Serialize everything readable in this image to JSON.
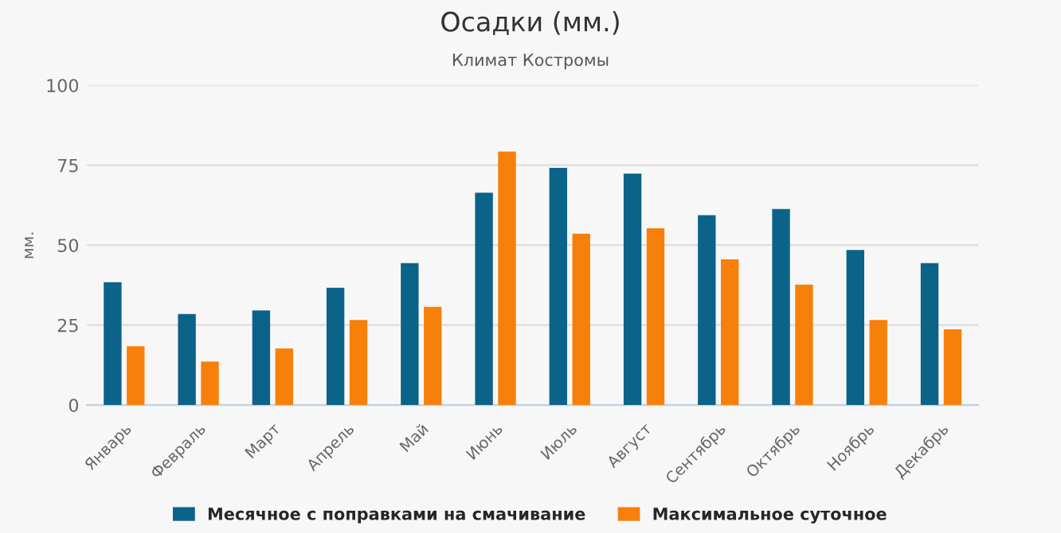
{
  "chart_data": {
    "type": "bar",
    "title": "Осадки (мм.)",
    "subtitle": "Климат Костромы",
    "ylabel": "мм.",
    "categories": [
      "Январь",
      "Февраль",
      "Март",
      "Апрель",
      "Май",
      "Июнь",
      "Июль",
      "Август",
      "Сентябрь",
      "Октябрь",
      "Ноябрь",
      "Декабрь"
    ],
    "series": [
      {
        "name": "Месячное с поправками на смачивание",
        "color": "#0b6389",
        "values": [
          38.4,
          28.5,
          29.6,
          36.7,
          44.4,
          66.4,
          74.2,
          72.4,
          59.4,
          61.3,
          48.5,
          44.4
        ]
      },
      {
        "name": "Максимальное суточное",
        "color": "#f7800b",
        "values": [
          18.4,
          13.6,
          17.7,
          26.6,
          30.7,
          79.3,
          53.6,
          55.3,
          45.6,
          37.7,
          26.6,
          23.7
        ]
      }
    ],
    "ylim": [
      0,
      100
    ],
    "yticks": [
      0,
      25,
      50,
      75,
      100
    ],
    "grid": "y",
    "legend": "bottom"
  }
}
